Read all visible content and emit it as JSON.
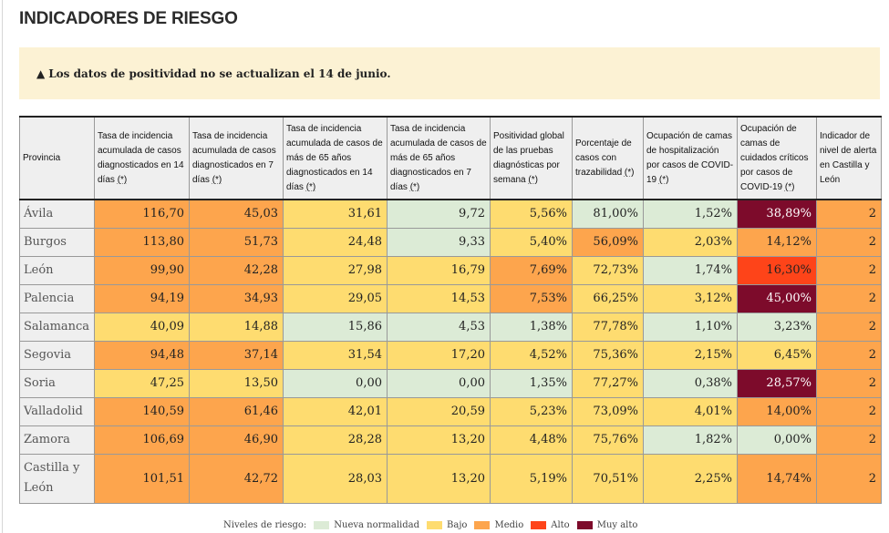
{
  "title": "INDICADORES DE RIESGO",
  "notice": {
    "icon": "warning-icon",
    "text": "Los datos de positividad no se actualizan el 14 de junio."
  },
  "colors": {
    "nueva_normalidad": "#dcebd6",
    "bajo": "#fedc70",
    "medio": "#fda54d",
    "alto": "#fe4419",
    "muy_alto": "#7d0b2b"
  },
  "table": {
    "headers": [
      {
        "label": "Provincia",
        "asterisk": ""
      },
      {
        "label": "Tasa de incidencia acumulada de casos diagnosticados en 14 días ",
        "asterisk": "(*)"
      },
      {
        "label": "Tasa de incidencia acumulada de casos diagnosticados en 7 días ",
        "asterisk": "(*)"
      },
      {
        "label": "Tasa de incidencia acumulada de casos de más de 65 años diagnosticados en 14 días ",
        "asterisk": "(*)"
      },
      {
        "label": "Tasa de incidencia acumulada de casos de más de 65 años diagnosticados en 7 días ",
        "asterisk": "(*)"
      },
      {
        "label": "Positividad global de las pruebas diagnósticas por semana ",
        "asterisk": "(*)"
      },
      {
        "label": "Porcentaje de casos con trazabilidad ",
        "asterisk": "(*)"
      },
      {
        "label": "Ocupación de camas de hospitalización por casos de COVID-19 ",
        "asterisk": "(*)"
      },
      {
        "label": "Ocupación de camas de cuidados críticos por casos de COVID-19 ",
        "asterisk": "(*)"
      },
      {
        "label": "Indicador de nivel de alerta en Castilla y León",
        "asterisk": ""
      }
    ],
    "rows": [
      {
        "provincia": "Ávila",
        "cells": [
          {
            "v": "116,70",
            "level": "medio"
          },
          {
            "v": "45,03",
            "level": "medio"
          },
          {
            "v": "31,61",
            "level": "bajo"
          },
          {
            "v": "9,72",
            "level": "nn"
          },
          {
            "v": "5,56%",
            "level": "bajo"
          },
          {
            "v": "81,00%",
            "level": "nn"
          },
          {
            "v": "1,52%",
            "level": "nn"
          },
          {
            "v": "38,89%",
            "level": "muy"
          },
          {
            "v": "2",
            "level": "medio"
          }
        ]
      },
      {
        "provincia": "Burgos",
        "cells": [
          {
            "v": "113,80",
            "level": "medio"
          },
          {
            "v": "51,73",
            "level": "medio"
          },
          {
            "v": "24,48",
            "level": "bajo"
          },
          {
            "v": "9,33",
            "level": "nn"
          },
          {
            "v": "5,40%",
            "level": "bajo"
          },
          {
            "v": "56,09%",
            "level": "medio"
          },
          {
            "v": "2,03%",
            "level": "bajo"
          },
          {
            "v": "14,12%",
            "level": "medio"
          },
          {
            "v": "2",
            "level": "medio"
          }
        ]
      },
      {
        "provincia": "León",
        "cells": [
          {
            "v": "99,90",
            "level": "medio"
          },
          {
            "v": "42,28",
            "level": "medio"
          },
          {
            "v": "27,98",
            "level": "bajo"
          },
          {
            "v": "16,79",
            "level": "bajo"
          },
          {
            "v": "7,69%",
            "level": "medio"
          },
          {
            "v": "72,73%",
            "level": "bajo"
          },
          {
            "v": "1,74%",
            "level": "nn"
          },
          {
            "v": "16,30%",
            "level": "alto"
          },
          {
            "v": "2",
            "level": "medio"
          }
        ]
      },
      {
        "provincia": "Palencia",
        "cells": [
          {
            "v": "94,19",
            "level": "medio"
          },
          {
            "v": "34,93",
            "level": "medio"
          },
          {
            "v": "29,05",
            "level": "bajo"
          },
          {
            "v": "14,53",
            "level": "bajo"
          },
          {
            "v": "7,53%",
            "level": "medio"
          },
          {
            "v": "66,25%",
            "level": "bajo"
          },
          {
            "v": "3,12%",
            "level": "bajo"
          },
          {
            "v": "45,00%",
            "level": "muy"
          },
          {
            "v": "2",
            "level": "medio"
          }
        ]
      },
      {
        "provincia": "Salamanca",
        "cells": [
          {
            "v": "40,09",
            "level": "bajo"
          },
          {
            "v": "14,88",
            "level": "bajo"
          },
          {
            "v": "15,86",
            "level": "nn"
          },
          {
            "v": "4,53",
            "level": "nn"
          },
          {
            "v": "1,38%",
            "level": "nn"
          },
          {
            "v": "77,78%",
            "level": "bajo"
          },
          {
            "v": "1,10%",
            "level": "nn"
          },
          {
            "v": "3,23%",
            "level": "nn"
          },
          {
            "v": "2",
            "level": "medio"
          }
        ]
      },
      {
        "provincia": "Segovia",
        "cells": [
          {
            "v": "94,48",
            "level": "medio"
          },
          {
            "v": "37,14",
            "level": "medio"
          },
          {
            "v": "31,54",
            "level": "bajo"
          },
          {
            "v": "17,20",
            "level": "bajo"
          },
          {
            "v": "4,52%",
            "level": "bajo"
          },
          {
            "v": "75,36%",
            "level": "bajo"
          },
          {
            "v": "2,15%",
            "level": "bajo"
          },
          {
            "v": "6,45%",
            "level": "bajo"
          },
          {
            "v": "2",
            "level": "medio"
          }
        ]
      },
      {
        "provincia": "Soria",
        "cells": [
          {
            "v": "47,25",
            "level": "bajo"
          },
          {
            "v": "13,50",
            "level": "bajo"
          },
          {
            "v": "0,00",
            "level": "nn"
          },
          {
            "v": "0,00",
            "level": "nn"
          },
          {
            "v": "1,35%",
            "level": "nn"
          },
          {
            "v": "77,27%",
            "level": "bajo"
          },
          {
            "v": "0,38%",
            "level": "nn"
          },
          {
            "v": "28,57%",
            "level": "muy"
          },
          {
            "v": "2",
            "level": "medio"
          }
        ]
      },
      {
        "provincia": "Valladolid",
        "cells": [
          {
            "v": "140,59",
            "level": "medio"
          },
          {
            "v": "61,46",
            "level": "medio"
          },
          {
            "v": "42,01",
            "level": "bajo"
          },
          {
            "v": "20,59",
            "level": "bajo"
          },
          {
            "v": "5,23%",
            "level": "bajo"
          },
          {
            "v": "73,09%",
            "level": "bajo"
          },
          {
            "v": "4,01%",
            "level": "bajo"
          },
          {
            "v": "14,00%",
            "level": "medio"
          },
          {
            "v": "2",
            "level": "medio"
          }
        ]
      },
      {
        "provincia": "Zamora",
        "cells": [
          {
            "v": "106,69",
            "level": "medio"
          },
          {
            "v": "46,90",
            "level": "medio"
          },
          {
            "v": "28,28",
            "level": "bajo"
          },
          {
            "v": "13,20",
            "level": "bajo"
          },
          {
            "v": "4,48%",
            "level": "bajo"
          },
          {
            "v": "75,76%",
            "level": "bajo"
          },
          {
            "v": "1,82%",
            "level": "nn"
          },
          {
            "v": "0,00%",
            "level": "nn"
          },
          {
            "v": "2",
            "level": "medio"
          }
        ]
      },
      {
        "provincia": "Castilla y León",
        "cells": [
          {
            "v": "101,51",
            "level": "medio"
          },
          {
            "v": "42,72",
            "level": "medio"
          },
          {
            "v": "28,03",
            "level": "bajo"
          },
          {
            "v": "13,20",
            "level": "bajo"
          },
          {
            "v": "5,19%",
            "level": "bajo"
          },
          {
            "v": "70,51%",
            "level": "bajo"
          },
          {
            "v": "2,25%",
            "level": "bajo"
          },
          {
            "v": "14,74%",
            "level": "medio"
          },
          {
            "v": "2",
            "level": "medio"
          }
        ]
      }
    ]
  },
  "legend": {
    "label": "Niveles de riesgo:",
    "items": [
      {
        "key": "nn",
        "label": "Nueva normalidad"
      },
      {
        "key": "bajo",
        "label": "Bajo"
      },
      {
        "key": "medio",
        "label": "Medio"
      },
      {
        "key": "alto",
        "label": "Alto"
      },
      {
        "key": "muy",
        "label": "Muy alto"
      }
    ]
  }
}
